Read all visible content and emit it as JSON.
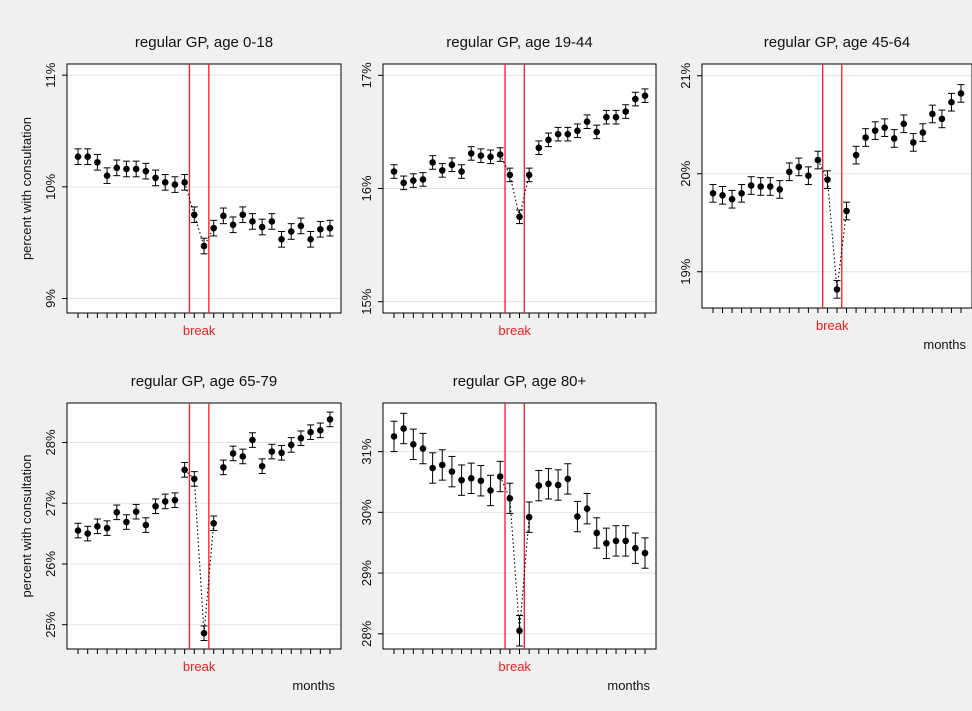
{
  "background_color": "#f0f0f0",
  "chart_data": [
    {
      "type": "scatter",
      "title": "regular GP, age 0-18",
      "ylabel": "percent with consultation",
      "xlabel": "",
      "break_label": "break",
      "ylim": [
        8.87,
        11.1
      ],
      "yticks": [
        {
          "v": 9,
          "label": "9%"
        },
        {
          "v": 10,
          "label": 10,
          "text": "10%"
        },
        {
          "v": 11,
          "label": "11%"
        }
      ],
      "break_lines": [
        16,
        18
      ],
      "values": [
        10.27,
        10.27,
        10.22,
        10.1,
        10.17,
        10.16,
        10.16,
        10.14,
        10.08,
        10.04,
        10.02,
        10.04,
        9.75,
        9.47,
        9.63,
        9.74,
        9.66,
        9.75,
        9.69,
        9.64,
        9.69,
        9.53,
        9.6,
        9.65,
        9.53,
        9.62,
        9.63
      ],
      "errors": [
        0.07,
        0.07,
        0.07,
        0.07,
        0.07,
        0.07,
        0.07,
        0.07,
        0.07,
        0.07,
        0.07,
        0.07,
        0.07,
        0.07,
        0.07,
        0.07,
        0.07,
        0.07,
        0.07,
        0.07,
        0.07,
        0.07,
        0.07,
        0.07,
        0.07,
        0.07,
        0.07
      ]
    },
    {
      "type": "scatter",
      "title": "regular GP, age 19-44",
      "ylabel": "",
      "xlabel": "",
      "break_label": "break",
      "ylim": [
        14.9,
        17.1
      ],
      "yticks": [
        {
          "v": 15,
          "label": "15%"
        },
        {
          "v": 16,
          "label": "16%"
        },
        {
          "v": 17,
          "label": "17%"
        }
      ],
      "break_lines": [
        16,
        18
      ],
      "values": [
        16.15,
        16.05,
        16.07,
        16.08,
        16.23,
        16.16,
        16.21,
        16.15,
        16.31,
        16.29,
        16.28,
        16.3,
        16.12,
        15.75,
        16.12,
        16.36,
        16.43,
        16.48,
        16.48,
        16.51,
        16.59,
        16.5,
        16.63,
        16.63,
        16.68,
        16.79,
        16.82
      ],
      "errors": [
        0.06,
        0.06,
        0.06,
        0.06,
        0.06,
        0.06,
        0.06,
        0.06,
        0.06,
        0.06,
        0.06,
        0.06,
        0.06,
        0.06,
        0.06,
        0.06,
        0.06,
        0.06,
        0.06,
        0.06,
        0.06,
        0.06,
        0.06,
        0.06,
        0.06,
        0.06,
        0.06
      ]
    },
    {
      "type": "scatter",
      "title": "regular GP, age 45-64",
      "ylabel": "",
      "xlabel": "months",
      "break_label": "break",
      "ylim": [
        18.63,
        21.12
      ],
      "yticks": [
        {
          "v": 19,
          "label": "19%"
        },
        {
          "v": 20,
          "label": "20%"
        },
        {
          "v": 21,
          "label": "21%"
        }
      ],
      "break_lines": [
        16,
        18
      ],
      "values": [
        19.8,
        19.78,
        19.74,
        19.8,
        19.88,
        19.87,
        19.87,
        19.84,
        20.02,
        20.07,
        19.98,
        20.14,
        19.94,
        18.82,
        19.62,
        20.19,
        20.37,
        20.44,
        20.47,
        20.36,
        20.51,
        20.32,
        20.42,
        20.61,
        20.56,
        20.73,
        20.82
      ],
      "errors": [
        0.09,
        0.09,
        0.09,
        0.09,
        0.09,
        0.09,
        0.09,
        0.09,
        0.09,
        0.09,
        0.09,
        0.09,
        0.09,
        0.09,
        0.09,
        0.09,
        0.09,
        0.09,
        0.09,
        0.09,
        0.09,
        0.09,
        0.09,
        0.09,
        0.09,
        0.09,
        0.09
      ]
    },
    {
      "type": "scatter",
      "title": "regular GP, age 65-79",
      "ylabel": "percent with consultation",
      "xlabel": "months",
      "break_label": "break",
      "ylim": [
        24.6,
        28.65
      ],
      "yticks": [
        {
          "v": 25,
          "label": "25%"
        },
        {
          "v": 26,
          "label": "26%"
        },
        {
          "v": 27,
          "label": "27%"
        },
        {
          "v": 28,
          "label": "28%"
        }
      ],
      "break_lines": [
        16,
        18
      ],
      "values": [
        26.55,
        26.5,
        26.62,
        26.59,
        26.85,
        26.69,
        26.86,
        26.64,
        26.95,
        27.03,
        27.05,
        27.55,
        27.4,
        24.86,
        26.67,
        27.59,
        27.82,
        27.77,
        28.04,
        27.61,
        27.85,
        27.83,
        27.96,
        28.07,
        28.17,
        28.2,
        28.38
      ],
      "errors": [
        0.12,
        0.12,
        0.12,
        0.12,
        0.12,
        0.12,
        0.12,
        0.12,
        0.12,
        0.12,
        0.12,
        0.12,
        0.12,
        0.12,
        0.12,
        0.12,
        0.12,
        0.12,
        0.12,
        0.12,
        0.12,
        0.12,
        0.12,
        0.12,
        0.12,
        0.12,
        0.12
      ]
    },
    {
      "type": "scatter",
      "title": "regular GP, age 80+",
      "ylabel": "",
      "xlabel": "months",
      "break_label": "break",
      "ylim": [
        27.75,
        31.8
      ],
      "yticks": [
        {
          "v": 28,
          "label": "28%"
        },
        {
          "v": 29,
          "label": "29%"
        },
        {
          "v": 30,
          "label": "30%"
        },
        {
          "v": 31,
          "label": "31%"
        }
      ],
      "break_lines": [
        16,
        18
      ],
      "values": [
        31.25,
        31.38,
        31.12,
        31.05,
        30.73,
        30.78,
        30.67,
        30.53,
        30.56,
        30.52,
        30.36,
        30.59,
        30.23,
        28.05,
        29.92,
        30.44,
        30.47,
        30.45,
        30.55,
        29.93,
        30.06,
        29.66,
        29.49,
        29.53,
        29.53,
        29.41,
        29.33
      ],
      "errors": [
        0.25,
        0.25,
        0.25,
        0.25,
        0.25,
        0.25,
        0.25,
        0.25,
        0.25,
        0.25,
        0.25,
        0.25,
        0.25,
        0.25,
        0.25,
        0.25,
        0.25,
        0.25,
        0.25,
        0.25,
        0.25,
        0.25,
        0.25,
        0.25,
        0.25,
        0.25,
        0.25
      ]
    }
  ]
}
